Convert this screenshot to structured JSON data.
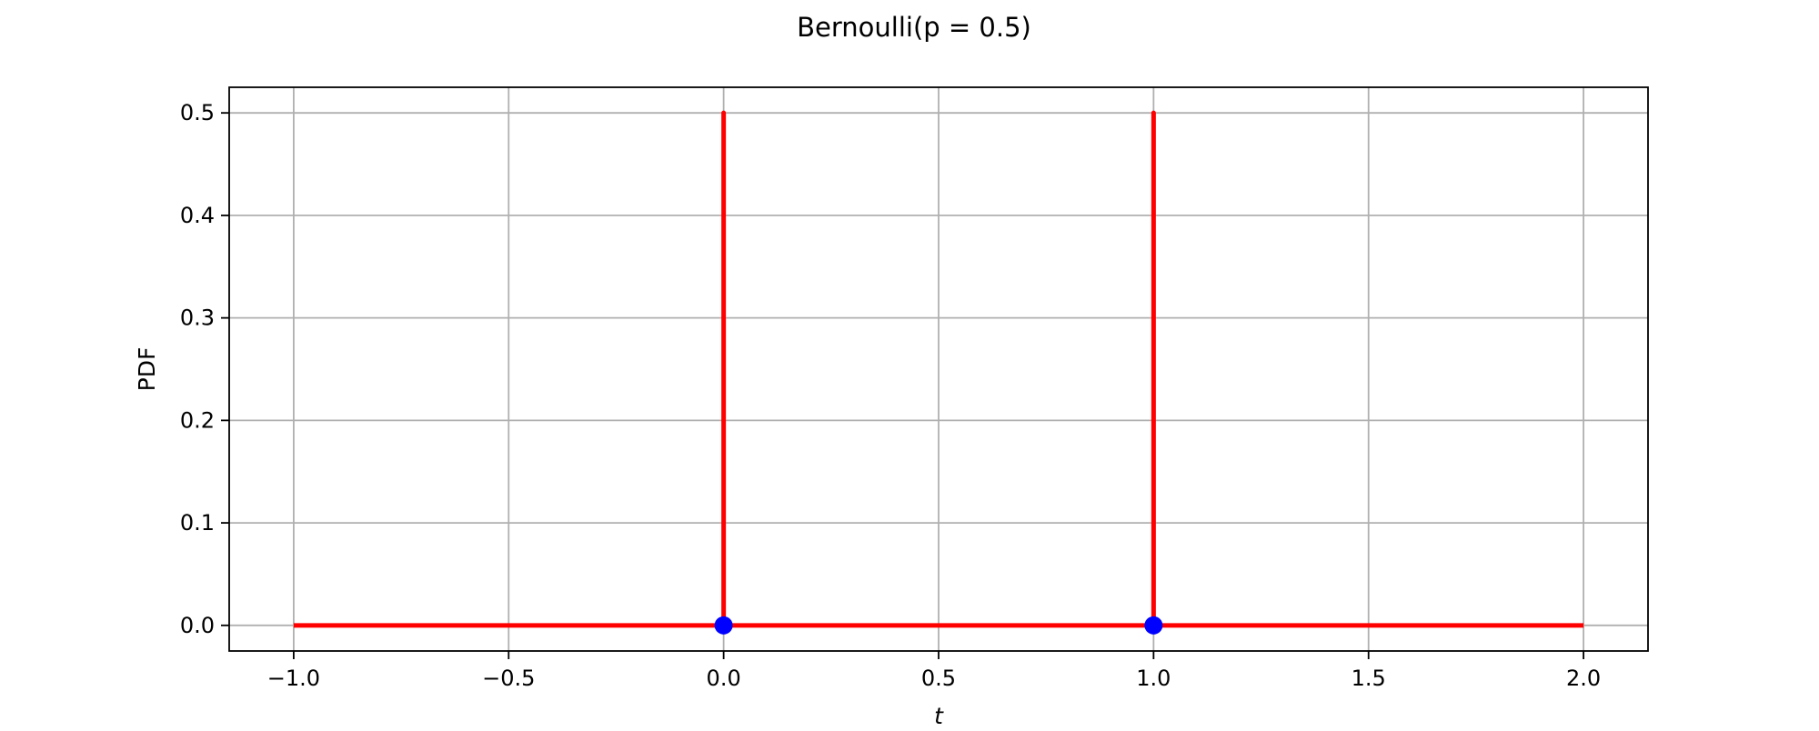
{
  "chart_data": {
    "type": "line",
    "title": "Bernoulli(p = 0.5)",
    "xlabel": "t",
    "ylabel": "PDF",
    "xlim": [
      -1.15,
      2.15
    ],
    "ylim": [
      -0.025,
      0.525
    ],
    "xticks": [
      -1.0,
      -0.5,
      0.0,
      0.5,
      1.0,
      1.5,
      2.0
    ],
    "xtick_labels": [
      "−1.0",
      "−0.5",
      "0.0",
      "0.5",
      "1.0",
      "1.5",
      "2.0"
    ],
    "yticks": [
      0.0,
      0.1,
      0.2,
      0.3,
      0.4,
      0.5
    ],
    "ytick_labels": [
      "0.0",
      "0.1",
      "0.2",
      "0.3",
      "0.4",
      "0.5"
    ],
    "grid": true,
    "series": [
      {
        "kind": "line",
        "color": "#ff0000",
        "x": [
          -1.0,
          0.0,
          0.0,
          0.0,
          1.0,
          1.0,
          1.0,
          2.0
        ],
        "y": [
          0.0,
          0.0,
          0.5,
          0.0,
          0.0,
          0.5,
          0.0,
          0.0
        ]
      },
      {
        "kind": "scatter",
        "color": "#0000ff",
        "x": [
          0.0,
          1.0
        ],
        "y": [
          0.0,
          0.0
        ]
      }
    ]
  }
}
